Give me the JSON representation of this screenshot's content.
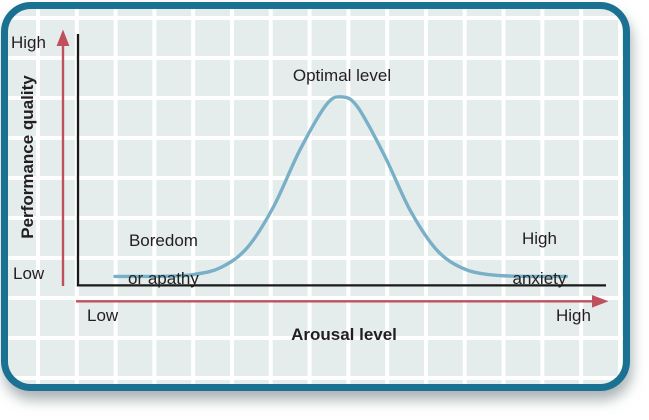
{
  "figure": {
    "description": "Inverted-U relationship between arousal and performance (Yerkes-Dodson law)",
    "y_axis": {
      "title": "Performance quality",
      "top_tick": "High",
      "bottom_tick": "Low"
    },
    "x_axis": {
      "title": "Arousal level",
      "left_tick": "Low",
      "right_tick": "High"
    },
    "annotations": {
      "optimal": "Optimal level",
      "boredom_line1": "Boredom",
      "boredom_line2": "or apathy",
      "anxiety_line1": "High",
      "anxiety_line2": "anxiety"
    }
  },
  "colors": {
    "frame_border": "#1b7191",
    "plot_background": "#e4edeb",
    "grid_line": "#ffffff",
    "axis": "#1a1a1a",
    "arrow": "#c0505e",
    "curve": "#79b0c7",
    "text": "#231f20",
    "page_background": "#ffffff"
  },
  "chart_data": {
    "type": "line",
    "title": "",
    "xlabel": "Arousal level",
    "ylabel": "Performance quality",
    "x_tick_labels": [
      "Low",
      "High"
    ],
    "y_tick_labels": [
      "Low",
      "High"
    ],
    "x_range": [
      0,
      1
    ],
    "y_range": [
      0,
      1
    ],
    "grid": true,
    "legend": false,
    "annotations": [
      {
        "text": "Optimal level",
        "x": 0.5,
        "y": 0.87
      },
      {
        "text": "Boredom or apathy",
        "x": 0.14,
        "y": 0.25
      },
      {
        "text": "High anxiety",
        "x": 0.86,
        "y": 0.26
      }
    ],
    "curve_shape": "gaussian (bell) peaking at mid arousal; flat low tails at both extremes",
    "series": [
      {
        "name": "Performance",
        "color": "#79b0c7",
        "points": [
          [
            0.07,
            0.036
          ],
          [
            0.12,
            0.036
          ],
          [
            0.17,
            0.037
          ],
          [
            0.22,
            0.044
          ],
          [
            0.27,
            0.071
          ],
          [
            0.32,
            0.149
          ],
          [
            0.37,
            0.312
          ],
          [
            0.42,
            0.538
          ],
          [
            0.47,
            0.718
          ],
          [
            0.5,
            0.75
          ],
          [
            0.53,
            0.709
          ],
          [
            0.58,
            0.519
          ],
          [
            0.63,
            0.296
          ],
          [
            0.68,
            0.14
          ],
          [
            0.73,
            0.067
          ],
          [
            0.78,
            0.043
          ],
          [
            0.83,
            0.037
          ],
          [
            0.88,
            0.036
          ],
          [
            0.925,
            0.036
          ]
        ]
      }
    ]
  }
}
